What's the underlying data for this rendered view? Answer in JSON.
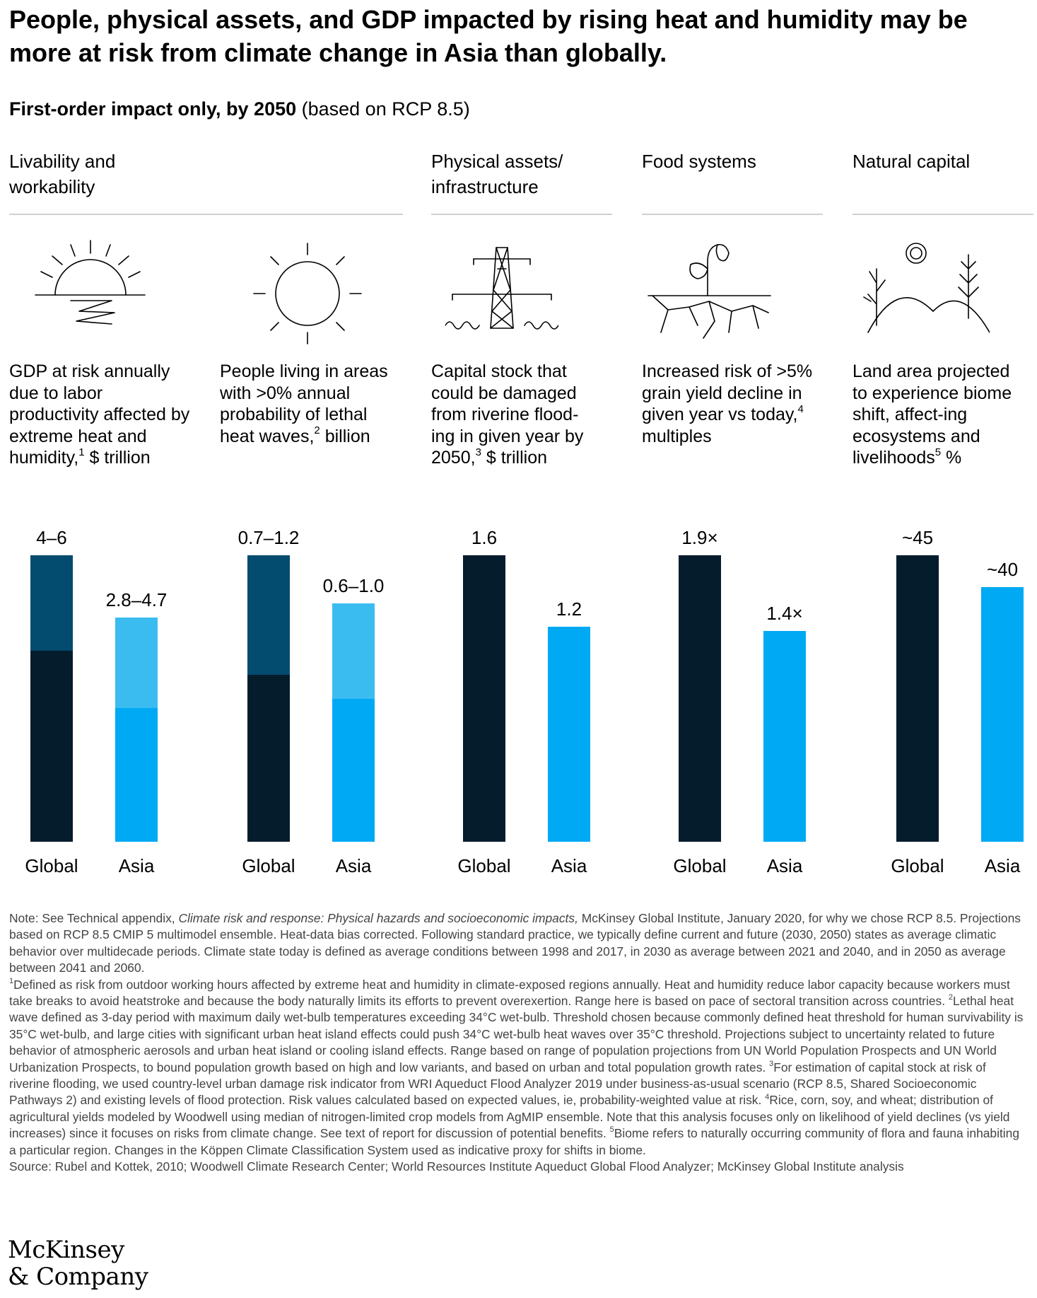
{
  "title": "People, physical assets, and GDP impacted by rising heat and humidity may be more at risk from climate change in Asia than globally.",
  "subtitle_bold": "First-order impact only, by 2050",
  "subtitle_rest": " (based on RCP 8.5)",
  "categories": {
    "livability": "Livability and workability",
    "assets": "Physical assets/ infrastructure",
    "food": "Food systems",
    "natural": "Natural capital"
  },
  "icons": [
    "sunset-icon",
    "sun-icon",
    "power-tower-icon",
    "plant-dry-soil-icon",
    "landscape-icon"
  ],
  "metrics": [
    {
      "text": "GDP at risk annually due to labor productivity affected by extreme heat and humidity,",
      "sup": "1",
      "unit": " $ trillion"
    },
    {
      "text": "People living in areas with >0% annual probability of lethal heat waves,",
      "sup": "2",
      "unit": " billion"
    },
    {
      "text": "Capital stock that could be damaged from riverine flood-ing in given year by 2050,",
      "sup": "3",
      "unit": " $ trillion"
    },
    {
      "text": "Increased risk of >5% grain yield decline in given year vs today,",
      "sup": "4",
      "unit": " multiples"
    },
    {
      "text": "Land area projected to experience biome shift, affect-ing ecosystems and livelihoods",
      "sup": "5",
      "unit": " %"
    }
  ],
  "colors": {
    "global_dark": "#051c2c",
    "global_range": "#034b6f",
    "asia": "#00a9f4",
    "asia_range": "#3bbcf0"
  },
  "chart_data": [
    {
      "type": "bar",
      "metric": "GDP at risk annually ($ trillion)",
      "categories": [
        "Global",
        "Asia"
      ],
      "series": [
        {
          "label": "4–6",
          "low": 4,
          "high": 6
        },
        {
          "label": "2.8–4.7",
          "low": 2.8,
          "high": 4.7
        }
      ]
    },
    {
      "type": "bar",
      "metric": "People living in areas with lethal heat waves (billion)",
      "categories": [
        "Global",
        "Asia"
      ],
      "series": [
        {
          "label": "0.7–1.2",
          "low": 0.7,
          "high": 1.2
        },
        {
          "label": "0.6–1.0",
          "low": 0.6,
          "high": 1.0
        }
      ]
    },
    {
      "type": "bar",
      "metric": "Capital stock damaged from riverine flooding ($ trillion)",
      "categories": [
        "Global",
        "Asia"
      ],
      "series": [
        {
          "label": "1.6",
          "value": 1.6
        },
        {
          "label": "1.2",
          "value": 1.2
        }
      ]
    },
    {
      "type": "bar",
      "metric": "Increased risk of >5% grain yield decline (multiples)",
      "categories": [
        "Global",
        "Asia"
      ],
      "series": [
        {
          "label": "1.9×",
          "value": 1.9
        },
        {
          "label": "1.4×",
          "value": 1.4
        }
      ]
    },
    {
      "type": "bar",
      "metric": "Land area with biome shift (%)",
      "categories": [
        "Global",
        "Asia"
      ],
      "series": [
        {
          "label": "~45",
          "value": 45
        },
        {
          "label": "~40",
          "value": 40
        }
      ]
    }
  ],
  "notes": {
    "note_a": "Note: See Technical appendix, ",
    "note_italic": "Climate risk and response: Physical hazards and socioeconomic impacts,",
    "note_b": " McKinsey Global Institute, January 2020, for why we chose RCP 8.5. Projections based on RCP 8.5 CMIP 5 multimodel ensemble. Heat-data bias corrected. Following standard practice, we typically define current and future (2030, 2050) states as average climatic behavior over multidecade periods. Climate state today is defined as average conditions between 1998 and 2017, in 2030 as average between 2021 and 2040, and in 2050 as average between 2041 and 2060.",
    "fn1": "Defined as risk from outdoor working hours affected by extreme heat and humidity in climate-exposed regions annually. Heat and humidity reduce labor capacity because workers must take breaks to avoid heatstroke and because the body naturally limits its efforts to prevent overexertion. Range here is based on pace of sectoral transition across countries. ",
    "fn2": "Lethal heat wave defined as 3-day period with maximum daily wet-bulb temperatures exceeding 34°C wet-bulb. Threshold chosen because commonly defined heat threshold for human survivability is 35°C wet-bulb, and large cities with significant urban heat island effects could push 34°C wet-bulb heat waves over 35°C threshold. Projections subject to uncertainty related to future behavior of atmospheric aerosols and urban heat island or cooling island effects. Range based on range of population projections from UN World Population Prospects and UN World Urbanization Prospects, to bound population growth based on high and low variants, and based on urban and total population growth rates. ",
    "fn3": "For estimation of capital stock at risk of riverine flooding, we used country-level urban damage risk indicator from WRI Aqueduct Flood Analyzer 2019 under business-as-usual scenario (RCP 8.5, Shared Socioeconomic Pathways 2) and existing levels of flood protection. Risk values calculated based on expected values, ie, probability-weighted value at risk. ",
    "fn4": "Rice, corn, soy, and wheat; distribution of agricultural yields modeled by Woodwell using median of nitrogen-limited crop models from AgMIP ensemble. Note that this analysis focuses only on likelihood of yield declines (vs yield increases) since it focuses on risks from climate change. See text of report for discussion of potential benefits. ",
    "fn5": "Biome refers to naturally occurring community of flora and fauna inhabiting a particular region. Changes in the Köppen Climate Classification System used as indicative proxy for shifts in biome.",
    "source": "Source: Rubel and Kottek, 2010; Woodwell Climate Research Center; World Resources Institute Aqueduct Global Flood Analyzer; McKinsey Global Institute analysis",
    "sup1": "1",
    "sup2": "2",
    "sup3": "3",
    "sup4": "4",
    "sup5": "5"
  },
  "logo_line1": "McKinsey",
  "logo_line2": "& Company"
}
